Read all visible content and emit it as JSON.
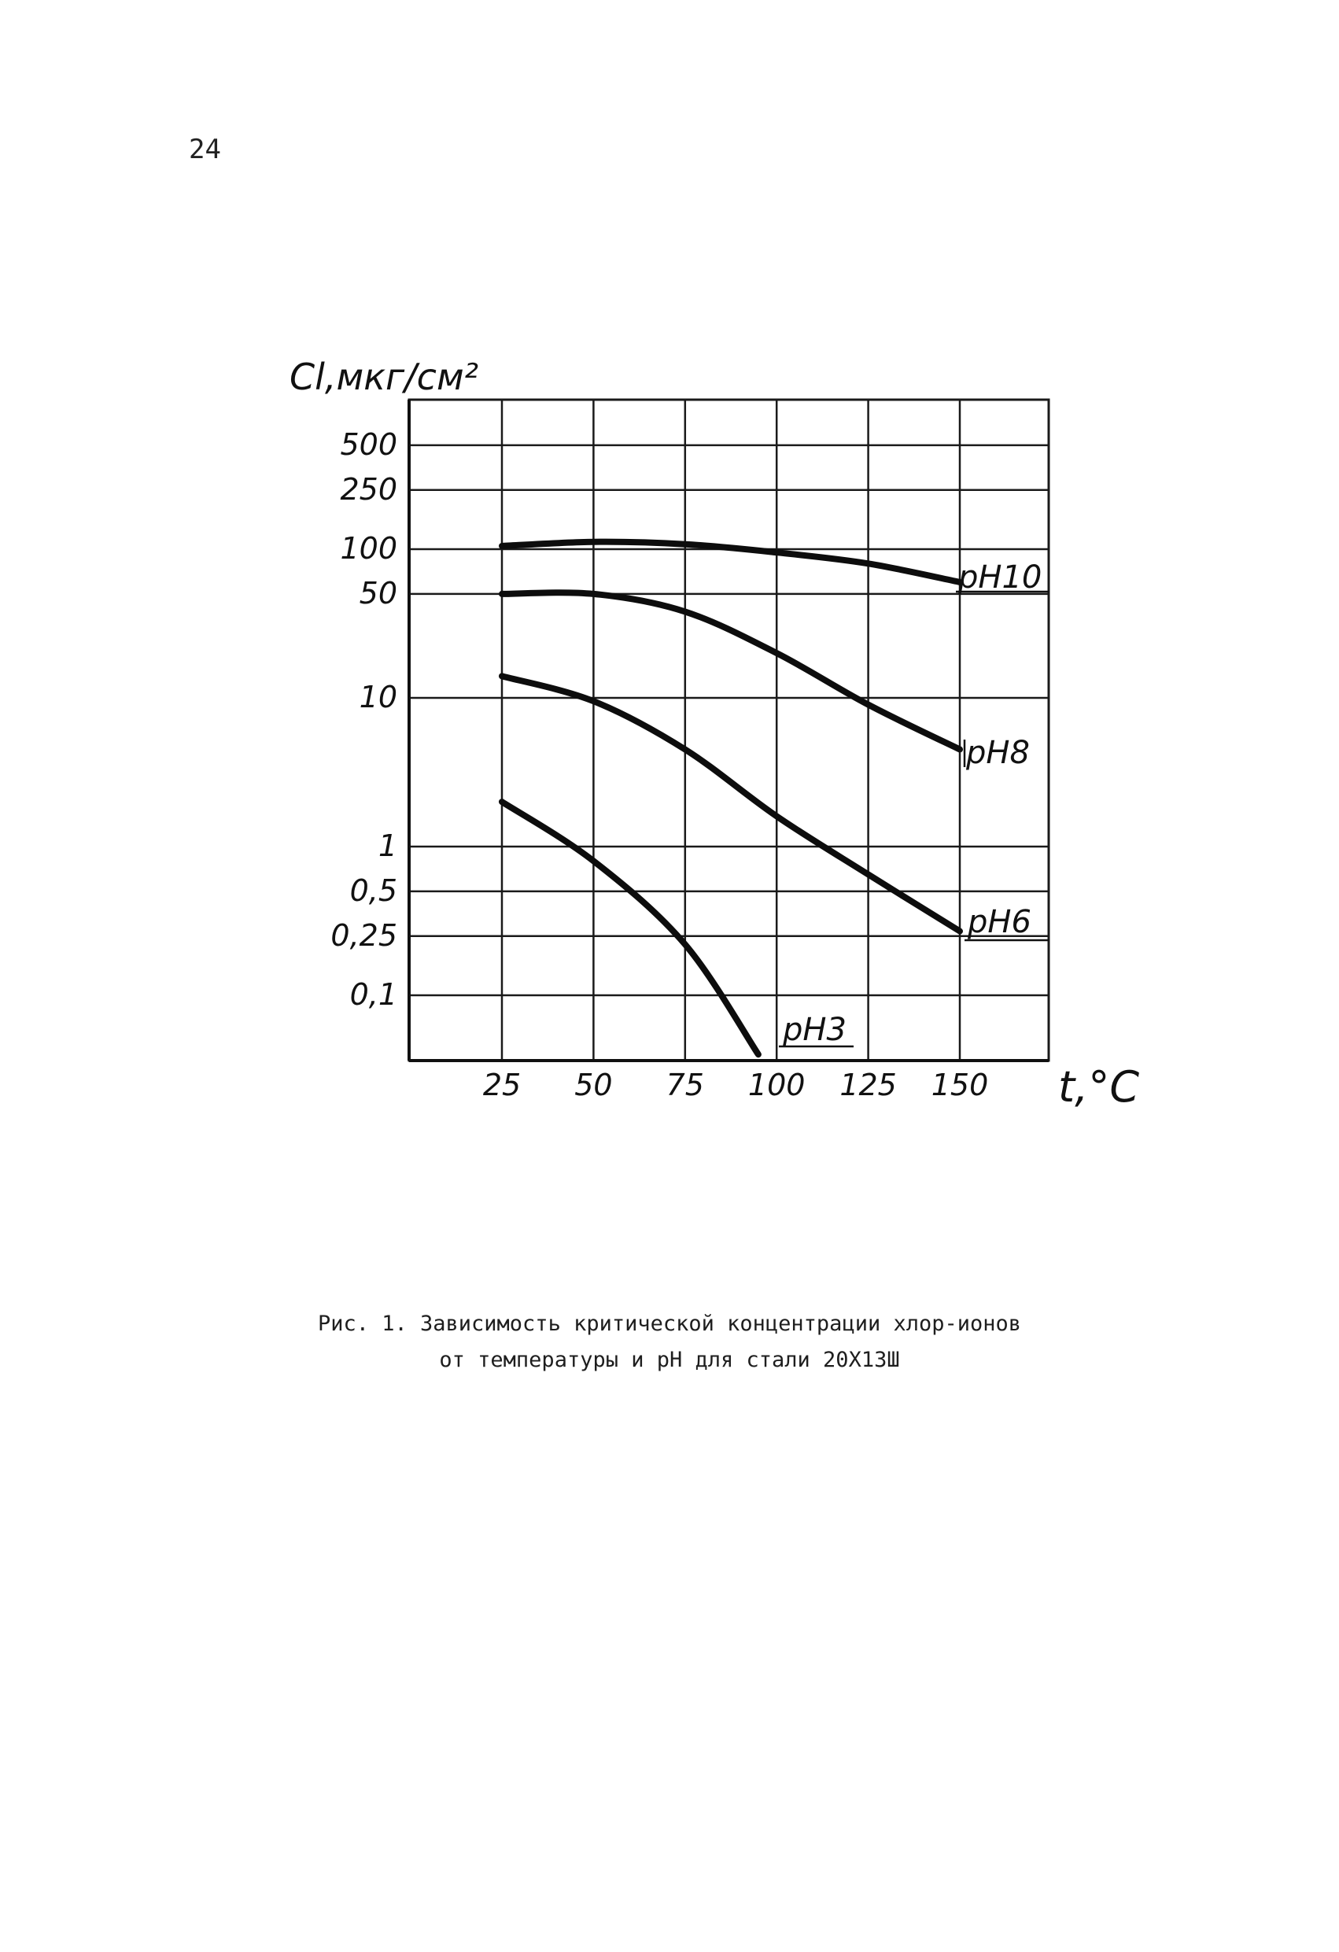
{
  "page": {
    "number": "24"
  },
  "chart_data": {
    "type": "line",
    "ylabel": "Cl,мкг/см²",
    "xlabel": "t,°C",
    "x_ticks": [
      25,
      50,
      75,
      100,
      125,
      150
    ],
    "y_scale": "log",
    "y_ticks": [
      "500",
      "250",
      "100",
      "50",
      "10",
      "1",
      "0,5",
      "0,25",
      "0,1"
    ],
    "y_tick_values": [
      500,
      250,
      100,
      50,
      10,
      1,
      0.5,
      0.25,
      0.1
    ],
    "xlim": [
      0,
      175
    ],
    "ylim": [
      0.03,
      1000
    ],
    "grid": true,
    "series": [
      {
        "name": "pH10",
        "x": [
          25,
          50,
          75,
          100,
          125,
          150
        ],
        "y": [
          105,
          112,
          108,
          95,
          80,
          60
        ]
      },
      {
        "name": "pH8",
        "x": [
          25,
          50,
          75,
          100,
          125,
          150
        ],
        "y": [
          50,
          50,
          38,
          20,
          9,
          4.5
        ]
      },
      {
        "name": "pH6",
        "x": [
          25,
          50,
          75,
          100,
          125,
          150
        ],
        "y": [
          14,
          9.5,
          4.5,
          1.6,
          0.65,
          0.27
        ]
      },
      {
        "name": "pH3",
        "x": [
          25,
          50,
          75,
          95
        ],
        "y": [
          2,
          0.8,
          0.22,
          0.04
        ]
      }
    ],
    "series_labels": [
      "pH10",
      "pH8",
      "pH6",
      "pH3"
    ]
  },
  "caption": {
    "line1": "Рис. 1. Зависимость критической концентрации хлор-ионов",
    "line2": "от температуры и pH для стали 20Х13Ш"
  }
}
